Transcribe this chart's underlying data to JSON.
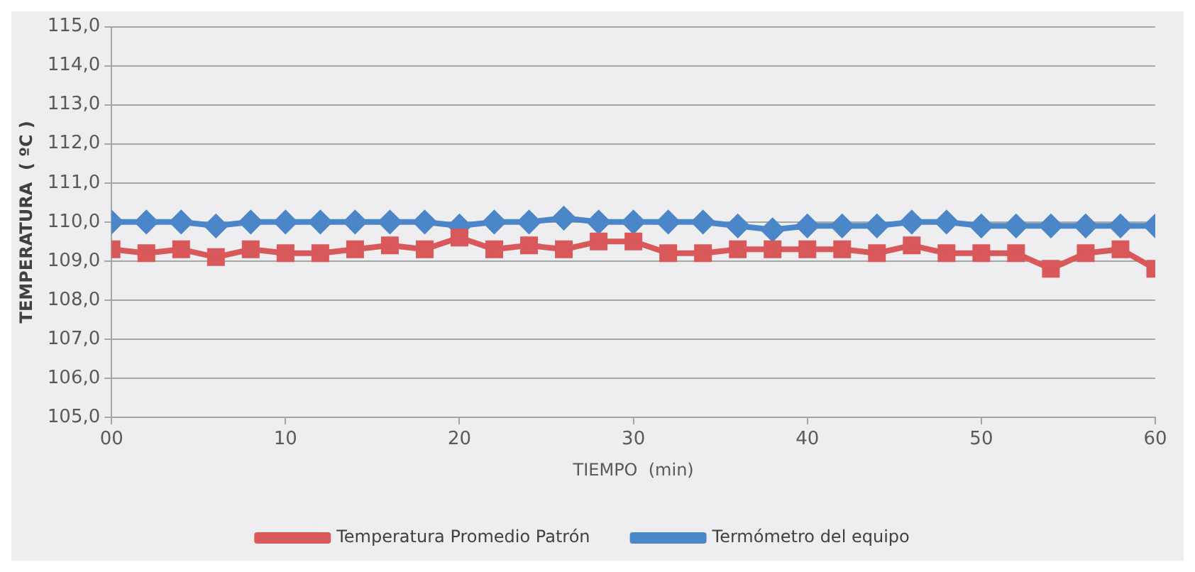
{
  "chart_data": {
    "type": "line",
    "xlabel": "TIEMPO  (min)",
    "ylabel": "TEMPERATURA  ( ºC )",
    "x": [
      0,
      2,
      4,
      6,
      8,
      10,
      12,
      14,
      16,
      18,
      20,
      22,
      24,
      26,
      28,
      30,
      32,
      34,
      36,
      38,
      40,
      42,
      44,
      46,
      48,
      50,
      52,
      54,
      56,
      58,
      60
    ],
    "series": [
      {
        "name": "Temperatura Promedio Patrón",
        "color": "#d9585a",
        "marker": "square",
        "values": [
          109.3,
          109.2,
          109.3,
          109.1,
          109.3,
          109.2,
          109.2,
          109.3,
          109.4,
          109.3,
          109.6,
          109.3,
          109.4,
          109.3,
          109.5,
          109.5,
          109.2,
          109.2,
          109.3,
          109.3,
          109.3,
          109.3,
          109.2,
          109.4,
          109.2,
          109.2,
          109.2,
          108.8,
          109.2,
          109.3,
          108.8
        ]
      },
      {
        "name": "Termómetro del equipo",
        "color": "#4a86c8",
        "marker": "diamond",
        "values": [
          110.0,
          110.0,
          110.0,
          109.9,
          110.0,
          110.0,
          110.0,
          110.0,
          110.0,
          110.0,
          109.9,
          110.0,
          110.0,
          110.1,
          110.0,
          110.0,
          110.0,
          110.0,
          109.9,
          109.8,
          109.9,
          109.9,
          109.9,
          110.0,
          110.0,
          109.9,
          109.9,
          109.9,
          109.9,
          109.9,
          109.9
        ]
      }
    ],
    "xlim": [
      0,
      60
    ],
    "xticks": [
      {
        "value": 0,
        "label": "00"
      },
      10,
      20,
      30,
      40,
      50,
      60
    ],
    "ylim": [
      105,
      115
    ],
    "yticks": [
      {
        "value": 105,
        "label": "105,0"
      },
      {
        "value": 106,
        "label": "106,0"
      },
      {
        "value": 107,
        "label": "107,0"
      },
      {
        "value": 108,
        "label": "108,0"
      },
      {
        "value": 109,
        "label": "109,0"
      },
      {
        "value": 110,
        "label": "110,0"
      },
      {
        "value": 111,
        "label": "111,0"
      },
      {
        "value": 112,
        "label": "112,0"
      },
      {
        "value": 113,
        "label": "113,0"
      },
      {
        "value": 114,
        "label": "114,0"
      },
      {
        "value": 115,
        "label": "115,0"
      }
    ],
    "grid": "y",
    "legend": "bottom",
    "line_style": "solid"
  }
}
